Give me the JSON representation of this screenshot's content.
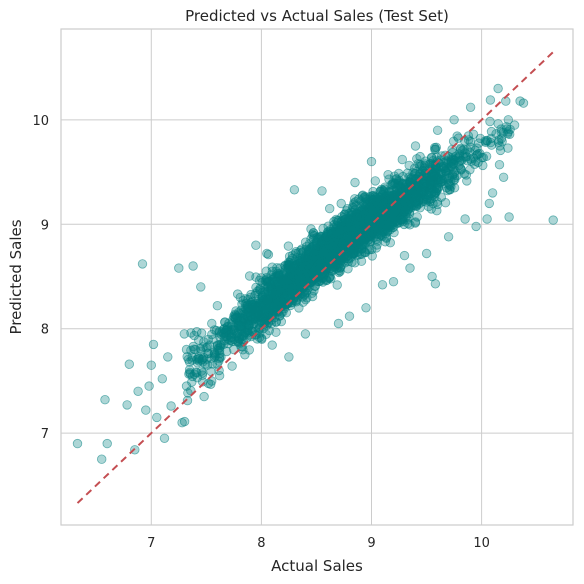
{
  "chart_data": {
    "type": "scatter",
    "title": "Predicted vs Actual Sales (Test Set)",
    "xlabel": "Actual Sales",
    "ylabel": "Predicted Sales",
    "xlim": [
      6.18,
      10.83
    ],
    "ylim": [
      6.12,
      10.87
    ],
    "xticks": [
      7,
      8,
      9,
      10
    ],
    "yticks": [
      7,
      8,
      9,
      10
    ],
    "grid": true,
    "point_color": "#008080",
    "reference_line": {
      "x": [
        6.33,
        10.65
      ],
      "y": [
        6.33,
        10.65
      ],
      "color": "#c44e52",
      "style": "dashed"
    },
    "point_count": 3200,
    "main_band": [
      [
        7.45,
        7.72,
        0.14
      ],
      [
        7.6,
        7.85,
        0.14
      ],
      [
        7.8,
        8.02,
        0.13
      ],
      [
        8.0,
        8.2,
        0.13
      ],
      [
        8.2,
        8.38,
        0.13
      ],
      [
        8.4,
        8.55,
        0.12
      ],
      [
        8.6,
        8.72,
        0.12
      ],
      [
        8.8,
        8.88,
        0.12
      ],
      [
        9.0,
        9.03,
        0.12
      ],
      [
        9.2,
        9.18,
        0.12
      ],
      [
        9.4,
        9.32,
        0.12
      ],
      [
        9.6,
        9.46,
        0.12
      ],
      [
        9.8,
        9.6,
        0.11
      ],
      [
        10.0,
        9.72,
        0.11
      ],
      [
        10.2,
        9.85,
        0.1
      ]
    ],
    "outliers": [
      [
        6.33,
        6.9
      ],
      [
        6.55,
        6.75
      ],
      [
        6.58,
        7.32
      ],
      [
        6.6,
        6.9
      ],
      [
        6.78,
        7.27
      ],
      [
        6.8,
        7.66
      ],
      [
        6.85,
        6.84
      ],
      [
        6.88,
        7.4
      ],
      [
        6.92,
        8.62
      ],
      [
        6.95,
        7.22
      ],
      [
        6.98,
        7.45
      ],
      [
        7.0,
        7.65
      ],
      [
        7.02,
        7.85
      ],
      [
        7.05,
        7.15
      ],
      [
        7.1,
        7.52
      ],
      [
        7.12,
        6.95
      ],
      [
        7.15,
        7.73
      ],
      [
        7.18,
        7.26
      ],
      [
        7.25,
        8.58
      ],
      [
        7.28,
        7.1
      ],
      [
        7.3,
        7.95
      ],
      [
        7.32,
        7.45
      ],
      [
        7.35,
        7.58
      ],
      [
        7.38,
        8.6
      ],
      [
        7.4,
        7.8
      ],
      [
        7.45,
        8.4
      ],
      [
        7.48,
        7.35
      ],
      [
        7.55,
        8.05
      ],
      [
        7.6,
        8.22
      ],
      [
        7.62,
        7.55
      ],
      [
        7.7,
        7.9
      ],
      [
        7.75,
        8.12
      ],
      [
        7.85,
        7.75
      ],
      [
        7.95,
        8.8
      ],
      [
        8.05,
        8.72
      ],
      [
        8.1,
        8.55
      ],
      [
        8.25,
        7.73
      ],
      [
        8.3,
        9.33
      ],
      [
        8.4,
        7.95
      ],
      [
        8.55,
        9.32
      ],
      [
        8.62,
        9.15
      ],
      [
        8.7,
        8.05
      ],
      [
        8.8,
        8.12
      ],
      [
        8.85,
        9.4
      ],
      [
        8.95,
        8.2
      ],
      [
        9.0,
        9.6
      ],
      [
        9.1,
        8.42
      ],
      [
        9.2,
        8.45
      ],
      [
        9.28,
        9.62
      ],
      [
        9.3,
        8.7
      ],
      [
        9.35,
        8.58
      ],
      [
        9.4,
        9.75
      ],
      [
        9.5,
        8.72
      ],
      [
        9.55,
        8.5
      ],
      [
        9.58,
        8.43
      ],
      [
        9.6,
        9.9
      ],
      [
        9.7,
        8.88
      ],
      [
        9.75,
        10.0
      ],
      [
        9.85,
        9.05
      ],
      [
        9.9,
        10.12
      ],
      [
        9.95,
        8.98
      ],
      [
        10.05,
        9.05
      ],
      [
        10.07,
        9.2
      ],
      [
        10.08,
        10.19
      ],
      [
        10.1,
        9.3
      ],
      [
        10.15,
        10.3
      ],
      [
        10.18,
        9.82
      ],
      [
        10.2,
        9.45
      ],
      [
        10.22,
        10.18
      ],
      [
        10.25,
        9.07
      ],
      [
        10.3,
        9.95
      ],
      [
        10.35,
        10.18
      ],
      [
        10.38,
        10.16
      ],
      [
        10.65,
        9.04
      ]
    ]
  }
}
